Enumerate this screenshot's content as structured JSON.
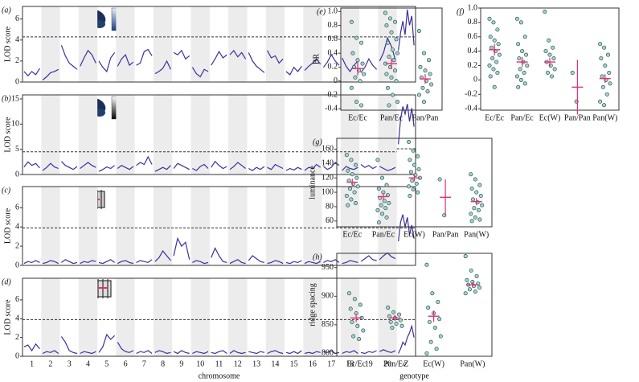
{
  "chart_data": [
    {
      "type": "lod",
      "label": "(a)",
      "ylabel": "LOD score",
      "ylim": [
        0,
        7.2
      ],
      "yticks": [
        0,
        2,
        4,
        6
      ],
      "threshold": 4.3,
      "values": [
        [
          1.0,
          0.6,
          1.0,
          0.7,
          1.3
        ],
        [
          0.2,
          0.5,
          0.9,
          1.0,
          1.2
        ],
        [
          3.5,
          2.5,
          1.8,
          1.5,
          1.2
        ],
        [
          1.5,
          2.3,
          3.0,
          2.6,
          1.8
        ],
        [
          2.0,
          1.4,
          1.0,
          2.3,
          2.8
        ],
        [
          1.5,
          2.2,
          2.6,
          1.6,
          1.9
        ],
        [
          1.6,
          1.8,
          2.9,
          3.1,
          2.5
        ],
        [
          0.8,
          1.0,
          1.3,
          2.0,
          1.2
        ],
        [
          2.8,
          2.6,
          3.0,
          2.2,
          2.5
        ],
        [
          1.4,
          0.8,
          0.5,
          1.2,
          1.0
        ],
        [
          1.6,
          2.2,
          2.9,
          2.3,
          2.6
        ],
        [
          2.6,
          3.0,
          2.4,
          2.8,
          2.2
        ],
        [
          2.8,
          2.0,
          1.5,
          1.2,
          0.9
        ],
        [
          3.0,
          2.3,
          2.5,
          1.8,
          2.2
        ],
        [
          1.0,
          0.7,
          1.4,
          1.0,
          1.5
        ],
        [
          1.1,
          1.5,
          1.8,
          2.2,
          1.7
        ],
        [
          1.4,
          1.9,
          2.6,
          2.0,
          1.6
        ],
        [
          2.3,
          1.5,
          1.0,
          1.6,
          2.0
        ],
        [
          0.9,
          1.4,
          2.2,
          1.6,
          1.2
        ],
        [
          2.0,
          2.8,
          4.2,
          3.4,
          2.1
        ],
        [
          3.0,
          4.7,
          5.8,
          4.5,
          6.9,
          5.4,
          6.3,
          3.5
        ]
      ]
    },
    {
      "type": "lod",
      "label": "(b)",
      "ylabel": "LOD score",
      "ylim": [
        0,
        15.8
      ],
      "yticks": [
        0,
        5,
        10,
        15
      ],
      "threshold": 4.5,
      "threshold_z": 5.1,
      "values": [
        [
          1.5,
          2.5,
          1.8,
          2.2,
          1.3
        ],
        [
          0.8,
          1.4,
          2.2,
          1.5,
          1.2
        ],
        [
          2.6,
          1.8,
          1.4,
          1.0,
          1.6
        ],
        [
          1.2,
          1.8,
          2.4,
          1.8,
          1.4
        ],
        [
          0.6,
          1.0,
          1.5,
          1.2,
          1.8
        ],
        [
          1.2,
          1.8,
          1.4,
          1.0,
          1.6
        ],
        [
          1.8,
          2.4,
          2.0,
          3.5,
          2.0
        ],
        [
          0.6,
          1.0,
          1.4,
          1.0,
          1.8
        ],
        [
          1.2,
          2.2,
          1.8,
          1.4,
          1.0
        ],
        [
          1.2,
          0.8,
          1.6,
          2.0,
          1.2
        ],
        [
          1.4,
          2.6,
          1.8,
          1.2,
          1.6
        ],
        [
          1.0,
          1.6,
          2.4,
          1.8,
          1.2
        ],
        [
          1.2,
          0.8,
          1.4,
          1.0,
          1.6
        ],
        [
          1.4,
          1.0,
          2.0,
          1.6,
          1.2
        ],
        [
          0.8,
          1.2,
          0.9,
          1.4,
          1.0
        ],
        [
          0.8,
          1.4,
          1.2,
          2.0,
          1.4
        ],
        [
          1.6,
          1.0,
          1.4,
          2.4,
          1.8
        ],
        [
          0.8,
          1.6,
          1.2,
          1.0,
          1.4
        ],
        [
          2.0,
          1.4,
          1.8,
          1.2,
          1.6
        ],
        [
          1.6,
          1.2,
          0.8,
          1.0,
          1.4
        ],
        [
          6.0,
          11.0,
          13.5,
          12.0,
          14.0,
          10.5,
          13.2,
          9.5
        ]
      ]
    },
    {
      "type": "lod",
      "label": "(c)",
      "ylabel": "LOD score",
      "ylim": [
        0,
        8.2
      ],
      "yticks": [
        0,
        2,
        4,
        6
      ],
      "threshold": 3.9,
      "values": [
        [
          0.2,
          0.4,
          0.3,
          0.5,
          0.3
        ],
        [
          0.2,
          0.3,
          0.5,
          0.4,
          0.2
        ],
        [
          0.3,
          0.6,
          0.4,
          0.2,
          0.3
        ],
        [
          0.2,
          0.4,
          0.3,
          0.5,
          0.4
        ],
        [
          0.3,
          0.2,
          0.4,
          0.6,
          0.3
        ],
        [
          0.2,
          0.4,
          0.5,
          0.3,
          0.2
        ],
        [
          0.3,
          0.5,
          0.4,
          0.3,
          0.6
        ],
        [
          0.4,
          0.8,
          1.5,
          1.0,
          0.5
        ],
        [
          1.0,
          2.8,
          2.0,
          2.4,
          0.6
        ],
        [
          0.3,
          0.5,
          0.4,
          0.2,
          0.3
        ],
        [
          0.8,
          1.8,
          1.0,
          0.4,
          0.3
        ],
        [
          0.2,
          0.4,
          0.6,
          0.3,
          0.2
        ],
        [
          0.5,
          1.0,
          0.7,
          0.4,
          0.3
        ],
        [
          0.2,
          0.3,
          0.5,
          0.4,
          0.2
        ],
        [
          0.3,
          0.2,
          0.4,
          0.3,
          0.5
        ],
        [
          0.2,
          0.4,
          0.3,
          0.2,
          0.4
        ],
        [
          0.3,
          0.5,
          0.4,
          0.6,
          0.3
        ],
        [
          0.2,
          0.3,
          0.5,
          0.4,
          0.3
        ],
        [
          0.4,
          0.7,
          1.0,
          0.6,
          0.5
        ],
        [
          0.6,
          1.0,
          1.3,
          0.9,
          0.7
        ],
        [
          2.5,
          4.5,
          5.3,
          4.0,
          5.0,
          3.2,
          4.2,
          2.8
        ]
      ]
    },
    {
      "type": "lod",
      "label": "(d)",
      "ylabel": "LOD score",
      "xlabel": "chromosome",
      "ylim": [
        0,
        8.3
      ],
      "yticks": [
        0,
        2,
        4,
        6
      ],
      "threshold": 3.9,
      "categories": [
        "1",
        "2",
        "3",
        "4",
        "5",
        "6",
        "7",
        "8",
        "9",
        "10",
        "11",
        "12",
        "13",
        "14",
        "15",
        "16",
        "17",
        "18",
        "19",
        "20",
        "Z"
      ],
      "values": [
        [
          1.0,
          1.2,
          0.6,
          1.3,
          0.8
        ],
        [
          0.3,
          0.5,
          0.4,
          0.6,
          0.3
        ],
        [
          2.1,
          1.5,
          0.6,
          0.4,
          0.3
        ],
        [
          0.3,
          0.5,
          0.4,
          0.3,
          0.5
        ],
        [
          0.4,
          1.0,
          2.3,
          1.8,
          2.2
        ],
        [
          1.5,
          0.8,
          0.5,
          0.4,
          0.6
        ],
        [
          0.3,
          0.5,
          0.4,
          0.6,
          0.3
        ],
        [
          0.4,
          0.6,
          0.5,
          0.3,
          0.4
        ],
        [
          0.5,
          0.3,
          0.6,
          0.4,
          0.3
        ],
        [
          0.3,
          0.5,
          0.4,
          0.3,
          0.5
        ],
        [
          0.4,
          0.3,
          0.5,
          0.6,
          0.3
        ],
        [
          0.3,
          0.6,
          0.4,
          0.3,
          0.4
        ],
        [
          0.5,
          0.4,
          0.3,
          0.5,
          0.4
        ],
        [
          0.3,
          0.5,
          0.6,
          0.4,
          0.3
        ],
        [
          0.4,
          0.3,
          0.5,
          0.3,
          0.6
        ],
        [
          0.3,
          0.4,
          0.3,
          0.5,
          0.4
        ],
        [
          0.5,
          0.4,
          0.6,
          0.3,
          0.4
        ],
        [
          0.3,
          0.5,
          0.4,
          0.6,
          0.3
        ],
        [
          0.4,
          0.3,
          0.5,
          0.4,
          0.6
        ],
        [
          0.5,
          0.7,
          0.5,
          0.4,
          0.6
        ],
        [
          0.3,
          0.8,
          1.5,
          1.2,
          2.0,
          2.5,
          3.2,
          2.0
        ]
      ]
    },
    {
      "type": "strip",
      "label": "(e)",
      "ylabel": "BR",
      "ylim": [
        -0.42,
        1.05
      ],
      "yticks": [
        -0.4,
        -0.2,
        0,
        0.2,
        0.4,
        0.6,
        0.8,
        {
          "value": 1,
          "label": "1.0"
        }
      ],
      "categories": [
        "Ec/Ec",
        "Pan/Ec",
        "Pan/Pan"
      ],
      "groups": [
        [
          0.85,
          0.62,
          0.55,
          0.4,
          0.3,
          0.25,
          0.2,
          0.15,
          0.1,
          0.05,
          0.0,
          -0.1,
          -0.3,
          -0.35
        ],
        [
          0.98,
          0.9,
          0.85,
          0.8,
          0.7,
          0.6,
          0.55,
          0.45,
          0.4,
          0.35,
          0.3,
          0.25,
          0.2,
          0.15,
          0.1,
          0.05,
          0.0,
          -0.1,
          -0.2,
          -0.3,
          -0.35
        ],
        [
          0.72,
          0.4,
          0.3,
          0.2,
          0.15,
          0.1,
          0.05,
          0.0,
          -0.05,
          -0.1,
          -0.15,
          -0.2,
          -0.3
        ]
      ],
      "means": [
        0.18,
        0.25,
        0.03
      ],
      "errors": [
        0.1,
        0.08,
        0.07
      ]
    },
    {
      "type": "strip",
      "label": "(f)",
      "ylim": [
        -0.42,
        1.0
      ],
      "yticks": [
        -0.4,
        -0.2,
        0,
        0.2,
        0.4,
        0.6,
        0.8,
        {
          "value": 1,
          "label": "1.0"
        }
      ],
      "categories": [
        "Ec/Ec",
        "Pan/Ec",
        "Ec(W)",
        "Pan/Pan",
        "Pan(W)"
      ],
      "groups": [
        [
          0.85,
          0.8,
          0.7,
          0.6,
          0.55,
          0.5,
          0.45,
          0.4,
          0.35,
          0.3,
          0.25,
          0.2,
          0.15,
          0.1,
          0.05,
          -0.1
        ],
        [
          0.85,
          0.8,
          0.6,
          0.5,
          0.4,
          0.35,
          0.3,
          0.25,
          0.2,
          0.15,
          0.1,
          0.05,
          0.0,
          -0.05,
          -0.1
        ],
        [
          0.95,
          0.55,
          0.45,
          0.4,
          0.35,
          0.3,
          0.25,
          0.2,
          0.15,
          0.1,
          0.05
        ],
        [
          0.1,
          -0.3
        ],
        [
          0.5,
          0.45,
          0.35,
          0.3,
          0.2,
          0.1,
          0.05,
          0.0,
          -0.05,
          -0.1,
          -0.2,
          -0.3,
          -0.35
        ]
      ],
      "means": [
        0.42,
        0.25,
        0.25,
        -0.1,
        0.02
      ],
      "errors": [
        0.08,
        0.07,
        0.06,
        0.38,
        0.06
      ]
    },
    {
      "type": "strip",
      "label": "(g)",
      "ylabel": "luminance",
      "ylim": [
        52,
        175
      ],
      "yticks": [
        60,
        80,
        100,
        120,
        140,
        160
      ],
      "categories": [
        "Ec/Ec",
        "Pan/Ec",
        "Ec(W)",
        "Pan/Pan",
        "Pan(W)"
      ],
      "groups": [
        [
          152,
          145,
          138,
          130,
          125,
          120,
          116,
          112,
          108,
          105,
          100,
          95,
          90,
          85,
          82
        ],
        [
          145,
          120,
          110,
          105,
          100,
          96,
          92,
          88,
          85,
          82,
          78,
          75,
          70,
          65,
          58
        ],
        [
          170,
          158,
          150,
          145,
          138,
          132,
          128,
          124,
          120,
          116,
          112,
          108,
          104,
          100,
          95
        ],
        [
          118,
          68
        ],
        [
          125,
          118,
          110,
          105,
          100,
          95,
          90,
          86,
          82,
          78,
          75,
          70,
          65,
          62,
          60
        ]
      ],
      "means": [
        114,
        94,
        120,
        93,
        87
      ],
      "errors": [
        5,
        5,
        5,
        25,
        5
      ]
    },
    {
      "type": "strip",
      "label": "(h)",
      "ylabel": "ridge spacing",
      "xlabel": "genotype",
      "ylim": [
        795,
        975
      ],
      "yticks": [
        800,
        850,
        900,
        950
      ],
      "categories": [
        "Ec/Ec",
        "Pan/Ec",
        "Ec(W)",
        "Pan(W)"
      ],
      "groups": [
        [
          905,
          895,
          885,
          878,
          870,
          862,
          855,
          848,
          840,
          830,
          825
        ],
        [
          880,
          872,
          868,
          865,
          862,
          858,
          855,
          852,
          848,
          845
        ],
        [
          955,
          905,
          890,
          880,
          870,
          860,
          855,
          845,
          830,
          820,
          808,
          800
        ],
        [
          970,
          945,
          935,
          928,
          925,
          922,
          920,
          918,
          915,
          912,
          908,
          905
        ]
      ],
      "means": [
        862,
        862,
        865,
        920
      ],
      "errors": [
        7,
        5,
        10,
        5
      ]
    }
  ]
}
